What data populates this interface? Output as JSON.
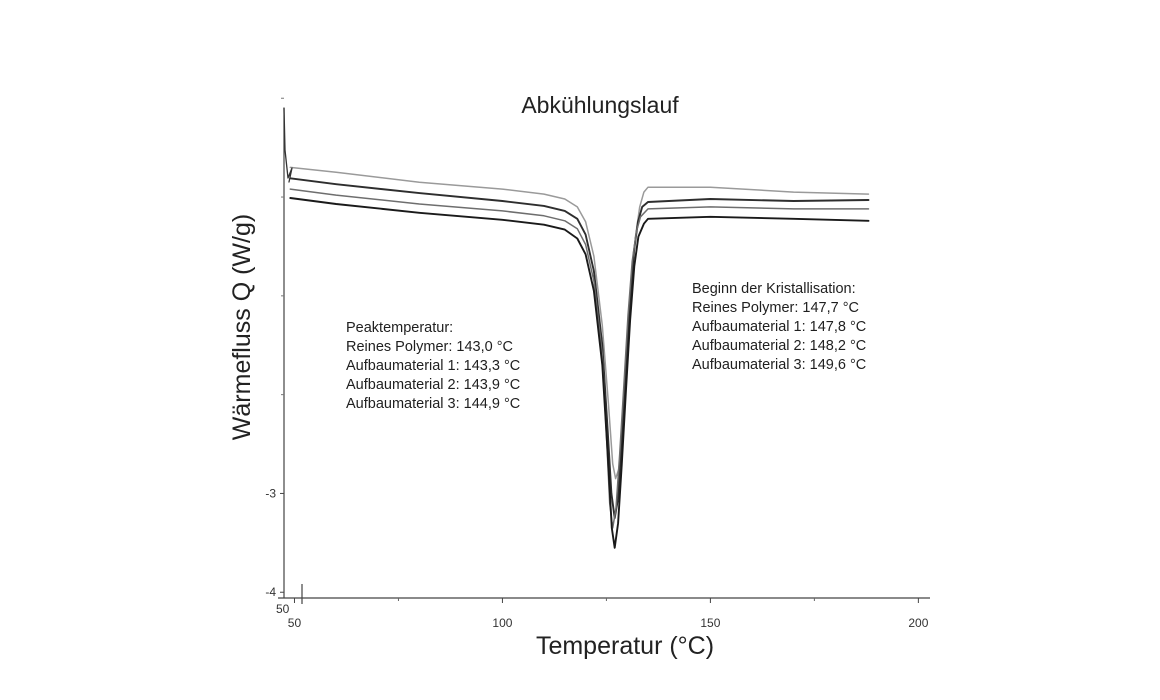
{
  "chart_data": {
    "type": "line",
    "title": "Abkühlungslauf",
    "xlabel": "Temperatur (°C)",
    "ylabel": "Wärmefluss Q (W/g)",
    "xlim": [
      47,
      204
    ],
    "ylim": [
      -4.2,
      0.8
    ],
    "x_ticks": [
      50,
      100,
      150,
      200
    ],
    "y_ticks": [
      {
        "value": -3,
        "label": "-3"
      },
      {
        "value": -4,
        "label": "-4"
      }
    ],
    "y_ticks_unlabeled": [
      -2,
      -1,
      0,
      1
    ],
    "corner_label": "50",
    "grid": false,
    "series": [
      {
        "color": "#9a9a9a",
        "points": [
          [
            49,
            0.3
          ],
          [
            60,
            0.25
          ],
          [
            80,
            0.15
          ],
          [
            100,
            0.08
          ],
          [
            110,
            0.03
          ],
          [
            115,
            -0.02
          ],
          [
            118,
            -0.1
          ],
          [
            120,
            -0.25
          ],
          [
            122,
            -0.6
          ],
          [
            124,
            -1.3
          ],
          [
            125.5,
            -2.1
          ],
          [
            126.5,
            -2.7
          ],
          [
            127.2,
            -2.85
          ],
          [
            128,
            -2.75
          ],
          [
            129,
            -2.3
          ],
          [
            130,
            -1.6
          ],
          [
            131,
            -0.9
          ],
          [
            132,
            -0.4
          ],
          [
            133,
            -0.1
          ],
          [
            134,
            0.05
          ],
          [
            135,
            0.1
          ],
          [
            150,
            0.1
          ],
          [
            170,
            0.05
          ],
          [
            188,
            0.03
          ]
        ]
      },
      {
        "color": "#2e2e2e",
        "points": [
          [
            49,
            0.19
          ],
          [
            60,
            0.13
          ],
          [
            80,
            0.04
          ],
          [
            100,
            -0.04
          ],
          [
            110,
            -0.09
          ],
          [
            115,
            -0.14
          ],
          [
            118,
            -0.22
          ],
          [
            120,
            -0.38
          ],
          [
            122,
            -0.75
          ],
          [
            124,
            -1.5
          ],
          [
            125.2,
            -2.3
          ],
          [
            126.2,
            -3.0
          ],
          [
            127,
            -3.25
          ],
          [
            127.8,
            -3.05
          ],
          [
            128.6,
            -2.5
          ],
          [
            129.6,
            -1.8
          ],
          [
            130.6,
            -1.1
          ],
          [
            131.6,
            -0.55
          ],
          [
            132.6,
            -0.25
          ],
          [
            133.6,
            -0.1
          ],
          [
            135,
            -0.05
          ],
          [
            150,
            -0.02
          ],
          [
            170,
            -0.04
          ],
          [
            188,
            -0.03
          ]
        ]
      },
      {
        "color": "#6e6e6e",
        "points": [
          [
            49,
            0.08
          ],
          [
            60,
            0.02
          ],
          [
            80,
            -0.07
          ],
          [
            100,
            -0.14
          ],
          [
            110,
            -0.19
          ],
          [
            115,
            -0.24
          ],
          [
            118,
            -0.32
          ],
          [
            120,
            -0.48
          ],
          [
            122,
            -0.85
          ],
          [
            124,
            -1.6
          ],
          [
            125,
            -2.4
          ],
          [
            125.8,
            -3.1
          ],
          [
            126.5,
            -3.35
          ],
          [
            127.3,
            -3.15
          ],
          [
            128.2,
            -2.6
          ],
          [
            129.2,
            -1.9
          ],
          [
            130.2,
            -1.2
          ],
          [
            131.2,
            -0.65
          ],
          [
            132.2,
            -0.35
          ],
          [
            133.2,
            -0.2
          ],
          [
            135,
            -0.12
          ],
          [
            150,
            -0.1
          ],
          [
            170,
            -0.12
          ],
          [
            188,
            -0.12
          ]
        ]
      },
      {
        "color": "#1a1a1a",
        "points": [
          [
            49,
            -0.01
          ],
          [
            60,
            -0.07
          ],
          [
            80,
            -0.16
          ],
          [
            100,
            -0.23
          ],
          [
            110,
            -0.28
          ],
          [
            115,
            -0.33
          ],
          [
            118,
            -0.42
          ],
          [
            120,
            -0.58
          ],
          [
            122,
            -0.95
          ],
          [
            124,
            -1.7
          ],
          [
            125.3,
            -2.6
          ],
          [
            126.3,
            -3.35
          ],
          [
            127,
            -3.55
          ],
          [
            127.8,
            -3.3
          ],
          [
            128.7,
            -2.7
          ],
          [
            129.7,
            -1.95
          ],
          [
            130.7,
            -1.25
          ],
          [
            131.7,
            -0.7
          ],
          [
            132.7,
            -0.4
          ],
          [
            134,
            -0.27
          ],
          [
            135,
            -0.22
          ],
          [
            150,
            -0.2
          ],
          [
            170,
            -0.22
          ],
          [
            188,
            -0.24
          ]
        ]
      }
    ]
  },
  "annotations": {
    "peak": {
      "header": "Peaktemperatur:",
      "lines": [
        "Reines Polymer: 143,0 °C",
        "Aufbaumaterial 1: 143,3 °C",
        "Aufbaumaterial 2: 143,9 °C",
        "Aufbaumaterial 3: 144,9 °C"
      ]
    },
    "onset": {
      "header": "Beginn der Kristallisation:",
      "lines": [
        "Reines Polymer: 147,7 °C",
        "Aufbaumaterial 1: 147,8 °C",
        "Aufbaumaterial 2: 148,2 °C",
        "Aufbaumaterial 3: 149,6 °C"
      ]
    }
  }
}
